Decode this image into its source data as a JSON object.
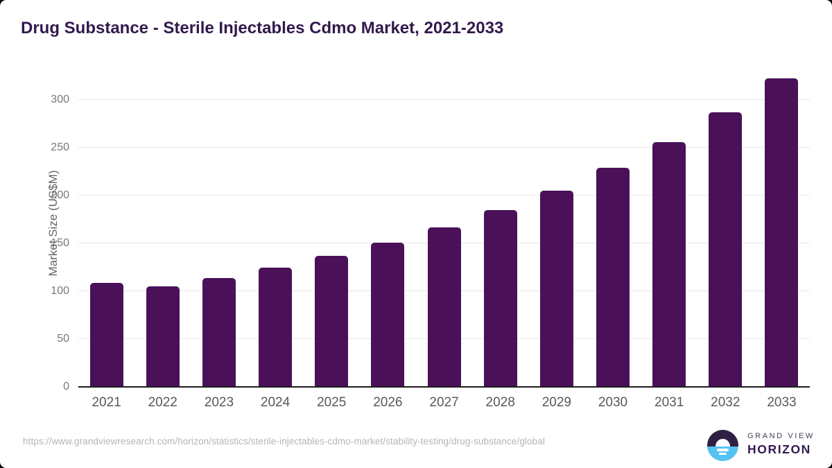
{
  "card": {
    "title": "Drug Substance - Sterile Injectables Cdmo Market, 2021-2033",
    "source_url": "https://www.grandviewresearch.com/horizon/statistics/sterile-injectables-cdmo-market/stability-testing/drug-substance/global"
  },
  "logo": {
    "line1": "GRAND VIEW",
    "line2": "HORIZON"
  },
  "colors": {
    "bar": "#4a1159",
    "title": "#32194d",
    "gridline": "#e7e7e7",
    "axis_line": "#1d1d1d",
    "y_tick_text": "#77787b",
    "x_tick_text": "#57585a",
    "url_text": "#b5b5b5",
    "logo_purple": "#2f2144",
    "logo_blue": "#55c3f0"
  },
  "chart_data": {
    "type": "bar",
    "title": "Drug Substance - Sterile Injectables Cdmo Market, 2021-2033",
    "xlabel": "",
    "ylabel": "Market Size (US$M)",
    "categories": [
      "2021",
      "2022",
      "2023",
      "2024",
      "2025",
      "2026",
      "2027",
      "2028",
      "2029",
      "2030",
      "2031",
      "2032",
      "2033"
    ],
    "values": [
      109,
      105,
      114,
      125,
      137,
      151,
      167,
      185,
      205,
      229,
      256,
      287,
      323
    ],
    "yticks": [
      0,
      50,
      100,
      150,
      200,
      250,
      300
    ],
    "ylim": [
      0,
      330
    ],
    "grid": "horizontal",
    "legend": "none",
    "bar_color": "#4a1159"
  }
}
